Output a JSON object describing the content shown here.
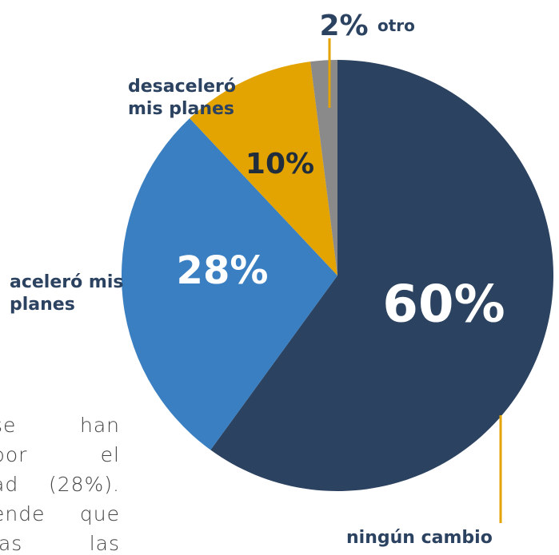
{
  "chart_data": {
    "type": "pie",
    "categories": [
      "ningún cambio",
      "aceleró mis planes",
      "desaceleró mis planes",
      "otro"
    ],
    "values": [
      60,
      28,
      10,
      2
    ],
    "value_labels": [
      "60%",
      "28%",
      "10%",
      "2%"
    ],
    "colors": [
      "#2b4260",
      "#3a7fc1",
      "#e3a300",
      "#8a8a8a"
    ]
  },
  "background_text": [
    "se han",
    "por el",
    "ad (28%).",
    "ende que",
    "ias las"
  ]
}
